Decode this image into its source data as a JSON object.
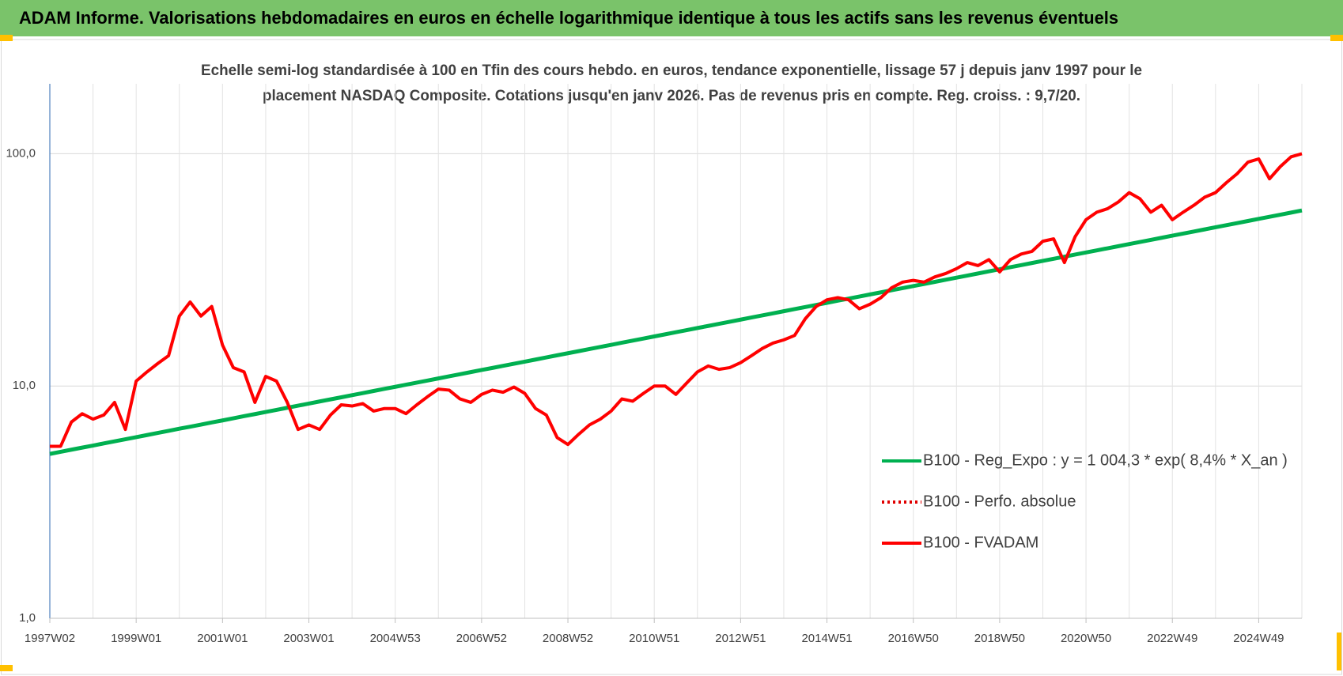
{
  "header": {
    "title": "ADAM Informe. Valorisations hebdomadaires en euros en échelle logarithmique identique à tous les actifs sans les revenus éventuels"
  },
  "chart_data": {
    "type": "line",
    "subtitle": [
      "Echelle semi-log standardisée à 100 en Tfin des cours hebdo. en euros, tendance exponentielle, lissage 57 j depuis janv 1997 pour le",
      "placement NASDAQ Composite. Cotations jusqu'en janv 2026.  Pas de revenus pris en compte. Reg. croiss. : 9,7/20."
    ],
    "log_scale": true,
    "grid": true,
    "legend_position": "right",
    "ylim": [
      1,
      200
    ],
    "yticks": [
      {
        "value": 1,
        "label": "1,0"
      },
      {
        "value": 10,
        "label": "10,0"
      },
      {
        "value": 100,
        "label": "100,0"
      }
    ],
    "categories": [
      "1997W02",
      null,
      null,
      null,
      null,
      null,
      null,
      null,
      "1999W01",
      null,
      null,
      null,
      null,
      null,
      null,
      null,
      "2001W01",
      null,
      null,
      null,
      null,
      null,
      null,
      null,
      "2003W01",
      null,
      null,
      null,
      null,
      null,
      null,
      null,
      "2004W53",
      null,
      null,
      null,
      null,
      null,
      null,
      null,
      "2006W52",
      null,
      null,
      null,
      null,
      null,
      null,
      null,
      "2008W52",
      null,
      null,
      null,
      null,
      null,
      null,
      null,
      "2010W51",
      null,
      null,
      null,
      null,
      null,
      null,
      null,
      "2012W51",
      null,
      null,
      null,
      null,
      null,
      null,
      null,
      "2014W51",
      null,
      null,
      null,
      null,
      null,
      null,
      null,
      "2016W50",
      null,
      null,
      null,
      null,
      null,
      null,
      null,
      "2018W50",
      null,
      null,
      null,
      null,
      null,
      null,
      null,
      "2020W50",
      null,
      null,
      null,
      null,
      null,
      null,
      null,
      "2022W49",
      null,
      null,
      null,
      null,
      null,
      null,
      null,
      "2024W49",
      null,
      null,
      null,
      null
    ],
    "series": [
      {
        "name": "B100 - Reg_Expo : y = 1 004,3 * exp( 8,4% *  X_an )",
        "color": "#00b050",
        "line_style": "solid",
        "values": [
          5.1,
          5.21,
          5.32,
          5.43,
          5.54,
          5.66,
          5.78,
          5.9,
          6.02,
          6.15,
          6.28,
          6.41,
          6.55,
          6.68,
          6.82,
          6.97,
          7.11,
          7.26,
          7.42,
          7.57,
          7.73,
          7.89,
          8.06,
          8.23,
          8.4,
          8.58,
          8.76,
          8.94,
          9.13,
          9.32,
          9.52,
          9.72,
          9.92,
          10.13,
          10.34,
          10.56,
          10.78,
          11.01,
          11.24,
          11.48,
          11.72,
          11.96,
          12.22,
          12.47,
          12.73,
          13.0,
          13.28,
          13.56,
          13.84,
          14.13,
          14.43,
          14.73,
          15.04,
          15.36,
          15.68,
          16.01,
          16.35,
          16.69,
          17.04,
          17.4,
          17.77,
          18.14,
          18.52,
          18.91,
          19.31,
          19.72,
          20.13,
          20.55,
          20.99,
          21.43,
          21.88,
          22.34,
          22.81,
          23.29,
          23.78,
          24.28,
          24.79,
          25.31,
          25.84,
          26.38,
          26.94,
          27.5,
          28.08,
          28.67,
          29.27,
          29.89,
          30.52,
          31.16,
          31.81,
          32.48,
          33.16,
          33.86,
          34.57,
          35.3,
          36.04,
          36.8,
          37.57,
          38.36,
          39.17,
          39.99,
          40.83,
          41.69,
          42.57,
          43.46,
          44.38,
          45.31,
          46.26,
          47.24,
          48.23,
          49.24,
          50.28,
          51.34,
          52.42,
          53.52,
          54.65,
          55.8,
          56.97
        ]
      },
      {
        "name": "B100 - Perfo. absolue",
        "color": "#e00000",
        "line_style": "dotted",
        "values": [
          null,
          null,
          null,
          null,
          null,
          null,
          null,
          null,
          null,
          null,
          null,
          null,
          null,
          null,
          null,
          null,
          null,
          null,
          null,
          null,
          null,
          null,
          null,
          null,
          null,
          null,
          null,
          null,
          null,
          null,
          null,
          null,
          null,
          null,
          null,
          null,
          null,
          null,
          null,
          null,
          null,
          null,
          null,
          null,
          null,
          null,
          null,
          null,
          null,
          null,
          null,
          null,
          null,
          null,
          null,
          null,
          null,
          null,
          null,
          null,
          null,
          null,
          null,
          null,
          null,
          null,
          null,
          null,
          null,
          null,
          null,
          null,
          null,
          null,
          null,
          null,
          null,
          null,
          null,
          null,
          null,
          null,
          null,
          null,
          null,
          null,
          null,
          null,
          null,
          null,
          null,
          null,
          null,
          null,
          null,
          null,
          null,
          null,
          null,
          null,
          null,
          null,
          null,
          null,
          null,
          null,
          null,
          null,
          null,
          null,
          null,
          null,
          null,
          null,
          null,
          null,
          null
        ]
      },
      {
        "name": "B100 - FVADAM",
        "color": "#ff0000",
        "line_style": "solid",
        "values": [
          5.5,
          5.5,
          7.0,
          7.6,
          7.2,
          7.5,
          8.5,
          6.5,
          10.5,
          11.5,
          12.5,
          13.5,
          20,
          23,
          20,
          22,
          15,
          12,
          11.5,
          8.5,
          11,
          10.5,
          8.5,
          6.5,
          6.8,
          6.5,
          7.5,
          8.3,
          8.2,
          8.4,
          7.8,
          8.0,
          8.0,
          7.6,
          8.3,
          9.0,
          9.7,
          9.6,
          8.8,
          8.5,
          9.2,
          9.6,
          9.4,
          9.9,
          9.3,
          8.0,
          7.5,
          6.0,
          5.6,
          6.2,
          6.8,
          7.2,
          7.8,
          8.8,
          8.6,
          9.3,
          10.0,
          10.0,
          9.2,
          10.3,
          11.5,
          12.2,
          11.8,
          12.0,
          12.6,
          13.5,
          14.5,
          15.3,
          15.8,
          16.5,
          19.5,
          22.0,
          23.5,
          24.0,
          23.5,
          21.5,
          22.5,
          24,
          26.5,
          28,
          28.5,
          28,
          29.5,
          30.5,
          32,
          34,
          33,
          35,
          31,
          35,
          37,
          38,
          42,
          43,
          34,
          44,
          52,
          56,
          58,
          62,
          68,
          64,
          56,
          60,
          52,
          56,
          60,
          65,
          68,
          75,
          82,
          92,
          95,
          78,
          88,
          97,
          100
        ]
      }
    ]
  }
}
